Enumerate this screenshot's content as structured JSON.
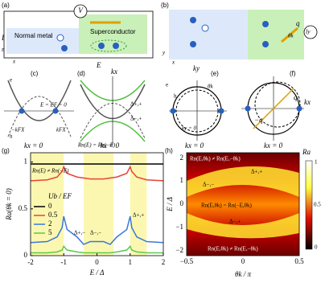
{
  "panels": {
    "a": {
      "label": "(a)",
      "voltage": "V",
      "current": "I",
      "axis_z": "z",
      "axis_x": "x",
      "normal": "Normal metal",
      "super": "Superconductor"
    },
    "b": {
      "label": "(b)",
      "axis_y": "y",
      "axis_x": "x",
      "q": "q",
      "theta": "θk",
      "current": "Iy"
    },
    "c": {
      "label": "(c)",
      "e": "e",
      "h": "h",
      "level": "E = EF = 0",
      "kneg": "−kFX",
      "kpos": "kFX",
      "cut": "kx = 0"
    },
    "d": {
      "label": "(d)",
      "e_axis": "E",
      "k_axis": "kx",
      "gap1": "Δ+,+",
      "gap2": "Δ−,+",
      "cut": "kx = 0"
    },
    "e": {
      "label": "(e)",
      "ky": "ky",
      "e": "e",
      "h": "h",
      "cut_y": "ky = 0",
      "cut_x": "kx = 0",
      "theta": "θk"
    },
    "f": {
      "label": "(f)",
      "kx": "kx",
      "q": "q",
      "mq": "−q",
      "cut": "kx = 0"
    },
    "h": {
      "label": "(h)",
      "cbar_title": "Ra",
      "ylabel": "E / Δ",
      "xlabel": "θk / π",
      "yticks": [
        "2",
        "1",
        "0",
        "−1",
        "−2"
      ],
      "xticks": [
        "−0.5",
        "0",
        "0.5"
      ],
      "cticks": [
        "1",
        "0.5",
        "0"
      ],
      "top": "Rn(E,θk) ≠ Rn(E,−θk)",
      "mid": "Rn(E,θk) = Rn(−E,θk)",
      "bottom": "Rn(E,θk) ≠ Rn(E,−θk)",
      "g1": "Δ−,−",
      "g2": "Δ+,+",
      "g3": "Δ−,+"
    }
  },
  "chart_data": {
    "type": "line",
    "panel_label": "(g)",
    "xlabel": "E / Δ",
    "ylabel": "Ra(θk = 0)",
    "legend_title": "Ub / EF",
    "annot_top": "Rn(E) = Rn(−E)",
    "annot_left": "Rn(E) ≠ Rn(−E)",
    "annot_g1": "Δ+,−",
    "annot_g2": "Δ−,−",
    "annot_g3": "Δ+,+",
    "x": [
      -2,
      -1.5,
      -1.2,
      -1.05,
      -1,
      -0.9,
      -0.6,
      -0.4,
      -0.2,
      0,
      0.2,
      0.4,
      0.6,
      0.9,
      1,
      1.05,
      1.2,
      1.5,
      2
    ],
    "shaded": [
      [
        -2,
        -1
      ],
      [
        -0.4,
        0.5
      ],
      [
        1,
        1.5
      ]
    ],
    "series": [
      {
        "name": "0",
        "color": "#000000",
        "values": [
          0.98,
          0.98,
          0.98,
          0.98,
          0.98,
          0.98,
          0.98,
          0.98,
          0.98,
          0.98,
          0.98,
          0.98,
          0.98,
          0.98,
          0.98,
          0.98,
          0.98,
          0.98,
          0.98
        ]
      },
      {
        "name": "0.5",
        "color": "#e8413a",
        "values": [
          0.8,
          0.81,
          0.84,
          0.9,
          0.95,
          0.88,
          0.84,
          0.83,
          0.82,
          0.82,
          0.82,
          0.83,
          0.84,
          0.88,
          0.95,
          0.9,
          0.84,
          0.81,
          0.8
        ]
      },
      {
        "name": "2",
        "color": "#3a78d8",
        "values": [
          0.14,
          0.15,
          0.2,
          0.3,
          0.42,
          0.28,
          0.2,
          0.12,
          0.15,
          0.15,
          0.15,
          0.12,
          0.2,
          0.28,
          0.42,
          0.3,
          0.2,
          0.15,
          0.14
        ]
      },
      {
        "name": "5",
        "color": "#5cc94a",
        "values": [
          0.03,
          0.03,
          0.04,
          0.06,
          0.1,
          0.06,
          0.04,
          0.03,
          0.03,
          0.03,
          0.03,
          0.03,
          0.04,
          0.06,
          0.1,
          0.06,
          0.04,
          0.03,
          0.03
        ]
      }
    ],
    "xlim": [
      -2,
      2
    ],
    "ylim": [
      0,
      1.1
    ],
    "xticks": [
      -2,
      -1,
      0,
      1,
      2
    ],
    "yticks": [
      0,
      0.5,
      1
    ]
  }
}
